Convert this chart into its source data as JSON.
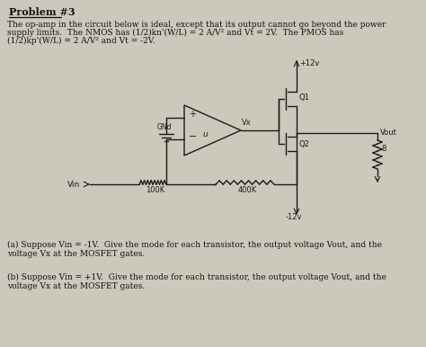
{
  "background_color": "#ccc8bc",
  "title": "Problem #3",
  "problem_text_line1": "The op-amp in the circuit below is ideal, except that its output cannot go beyond the power",
  "problem_text_line2": "supply limits.  The NMOS has (1/2)kn'(W/L) = 2 A/V² and Vt = 2V.  The PMOS has",
  "problem_text_line3": "(1/2)kp'(W/L) = 2 A/V² and Vt = -2V.",
  "part_a_line1": "(a) Suppose Vin = -1V.  Give the mode for each transistor, the output voltage Vout, and the",
  "part_a_line2": "voltage Vx at the MOSFET gates.",
  "part_b_line1": "(b) Suppose Vin = +1V.  Give the mode for each transistor, the output voltage Vout, and the",
  "part_b_line2": "voltage Vx at the MOSFET gates.",
  "font_size_title": 8,
  "font_size_body": 6.5,
  "circuit_color": "#1a1a1a",
  "lw": 1.0
}
